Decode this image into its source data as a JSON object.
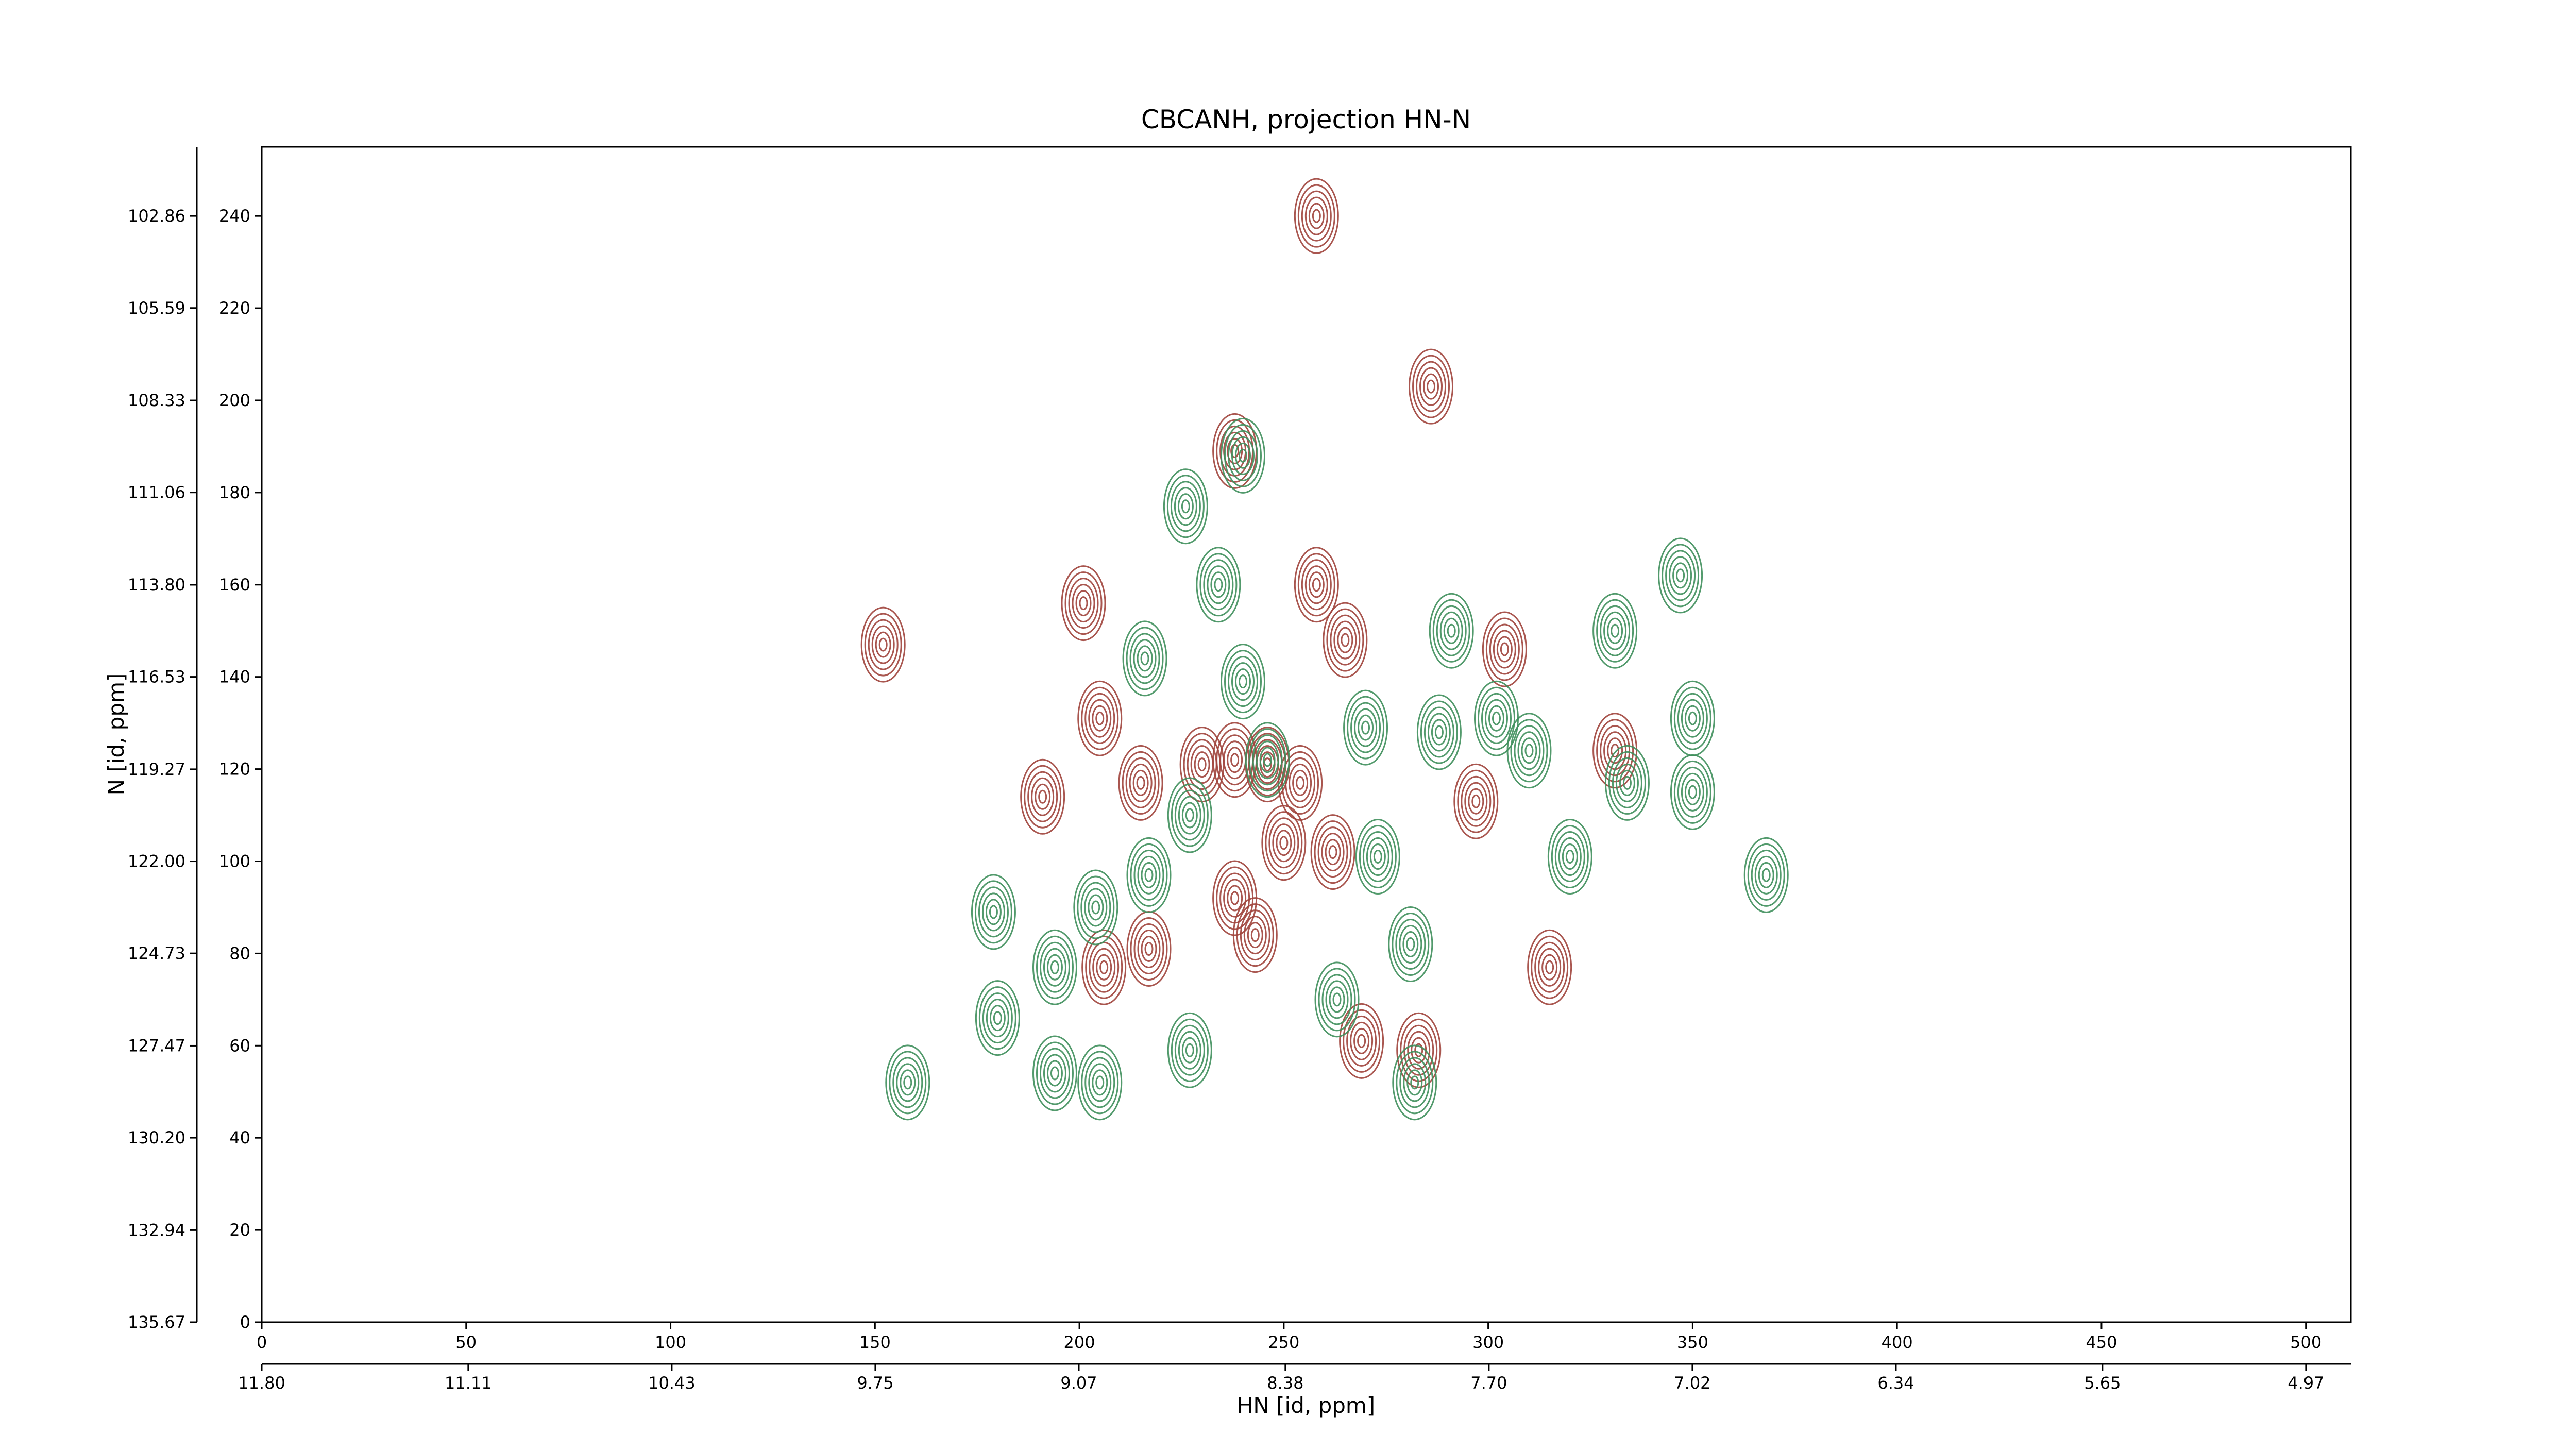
{
  "chart_data": {
    "type": "contour",
    "title": "CBCANH, projection HN-N",
    "xlabel": "HN [id, ppm]",
    "ylabel": "N [id, ppm]",
    "xlim": [
      0,
      511
    ],
    "xticks": [
      0,
      50,
      100,
      150,
      200,
      250,
      300,
      350,
      400,
      450,
      500
    ],
    "x2lim": [
      11.8,
      4.82
    ],
    "x2ticks": [
      {
        "value": 11.8,
        "label": "11.80"
      },
      11.11,
      10.43,
      9.75,
      9.07,
      8.38,
      {
        "value": 7.7,
        "label": "7.70"
      },
      7.02,
      6.34,
      5.65,
      4.97
    ],
    "ylim": [
      0,
      255
    ],
    "yticks": [
      0,
      20,
      40,
      60,
      80,
      100,
      120,
      140,
      160,
      180,
      200,
      220,
      240
    ],
    "y2lim": [
      135.67,
      100.81
    ],
    "y2ticks": [
      135.67,
      132.94,
      {
        "value": 130.2,
        "label": "130.20"
      },
      127.47,
      124.73,
      {
        "value": 122,
        "label": "122.00"
      },
      119.27,
      116.53,
      {
        "value": 113.8,
        "label": "113.80"
      },
      111.06,
      108.33,
      105.59,
      102.86
    ],
    "series": [
      {
        "color": "#a0443c",
        "x": [
          152,
          201,
          191,
          217,
          206,
          238,
          258,
          286,
          258,
          265,
          262,
          250,
          238,
          246,
          230,
          205,
          215,
          238,
          283,
          269,
          254,
          304,
          315,
          331,
          297,
          243
        ],
        "y": [
          147,
          156,
          114,
          81,
          77,
          189,
          240,
          203,
          160,
          148,
          102,
          104,
          92,
          121,
          121,
          131,
          117,
          122,
          59,
          61,
          117,
          146,
          77,
          124,
          113,
          84
        ]
      },
      {
        "color": "#3f8f5c",
        "x": [
          158,
          180,
          194,
          194,
          205,
          204,
          179,
          217,
          216,
          226,
          234,
          240,
          227,
          263,
          273,
          281,
          291,
          288,
          302,
          310,
          320,
          331,
          334,
          347,
          350,
          350,
          368,
          270,
          227,
          240,
          246,
          282
        ],
        "y": [
          52,
          66,
          77,
          54,
          52,
          90,
          89,
          97,
          144,
          177,
          160,
          188,
          59,
          70,
          101,
          82,
          150,
          128,
          131,
          124,
          101,
          150,
          117,
          162,
          131,
          115,
          97,
          129,
          110,
          139,
          122,
          52
        ]
      }
    ]
  }
}
